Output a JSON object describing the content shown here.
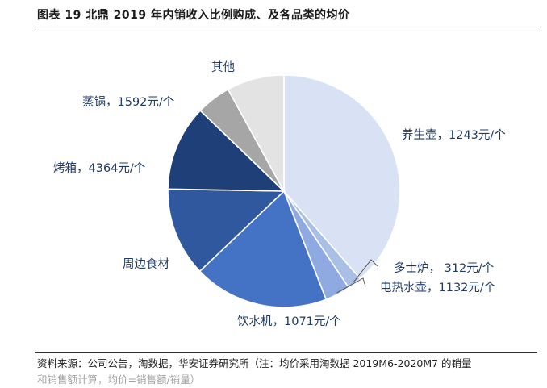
{
  "figure": {
    "title": "图表 19 北鼎 2019 年内销收入比例购成、及各品类的均价",
    "source": "资料来源：公司公告，淘数据，华安证券研究所（注：均价采用淘数据 2019M6-2020M7 的销量",
    "source_cont": "和销售额计算，均价=销售额/销量）"
  },
  "chart_data": {
    "type": "pie",
    "title": "",
    "start_angle_deg": 0,
    "direction": "clockwise",
    "slices": [
      {
        "name": "养生壶",
        "price_label": "1243元/个",
        "share": 38.6,
        "color": "#d9e2f4"
      },
      {
        "name": "多士炉",
        "price_label": "312元/个",
        "share": 2.0,
        "color": "#a9bfe6"
      },
      {
        "name": "电热水壶",
        "price_label": "1132元/个",
        "share": 3.5,
        "color": "#8eaae0"
      },
      {
        "name": "饮水机",
        "price_label": "1071元/个",
        "share": 18.8,
        "color": "#4473c5"
      },
      {
        "name": "周边食材",
        "price_label": "",
        "share": 12.4,
        "color": "#2f589f"
      },
      {
        "name": "烤箱",
        "price_label": "4364元/个",
        "share": 11.9,
        "color": "#1e3f78"
      },
      {
        "name": "蒸锅",
        "price_label": "1592元/个",
        "share": 4.8,
        "color": "#a6a6a6"
      },
      {
        "name": "其他",
        "price_label": "",
        "share": 8.0,
        "color": "#e3e3e3"
      }
    ],
    "labels": [
      {
        "text": "养生壶，1243元/个"
      },
      {
        "text": "多士炉， 312元/个"
      },
      {
        "text": "电热水壶，1132元/个"
      },
      {
        "text": "饮水机，1071元/个"
      },
      {
        "text": "周边食材"
      },
      {
        "text": "烤箱，4364元/个"
      },
      {
        "text": "蒸锅，1592元/个"
      },
      {
        "text": "其他"
      }
    ]
  }
}
